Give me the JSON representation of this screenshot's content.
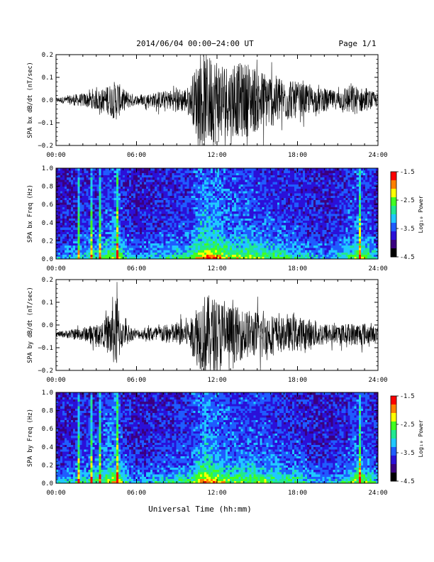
{
  "header": {
    "title": "2014/06/04  00:00−24:00 UT",
    "page": "Page 1/1"
  },
  "xlabel": "Universal Time (hh:mm)",
  "x_ticks": [
    "00:00",
    "06:00",
    "12:00",
    "18:00",
    "24:00"
  ],
  "x_range_hours": [
    0,
    24
  ],
  "colorbar": {
    "label": "Log₁₀ Power",
    "ticks": [
      "-1.5",
      "-2.5",
      "-3.5",
      "-4.5"
    ],
    "range": [
      -4.5,
      -1.5
    ],
    "colors": [
      "#000000",
      "#3a0080",
      "#2b10d8",
      "#1f5cff",
      "#20c8ff",
      "#20e890",
      "#40ff20",
      "#ffff00",
      "#ff8000",
      "#ff0000"
    ]
  },
  "chart_data": [
    {
      "type": "line",
      "ylabel": "SPA bx dB/dt (nT/sec)",
      "yticks": [
        "0.2",
        "0.1",
        "0.0",
        "−0.1",
        "−0.2"
      ],
      "ylim": [
        -0.2,
        0.2
      ],
      "x_range_hours": [
        0,
        24
      ],
      "envelope": {
        "hours": [
          0,
          2,
          3.5,
          4.5,
          5,
          6,
          8,
          10,
          10.5,
          11,
          12,
          13,
          14,
          15,
          16,
          17,
          18,
          19,
          20,
          21,
          22,
          23,
          24
        ],
        "amplitude": [
          0.01,
          0.03,
          0.05,
          0.09,
          0.05,
          0.02,
          0.04,
          0.06,
          0.17,
          0.2,
          0.2,
          0.15,
          0.17,
          0.14,
          0.12,
          0.09,
          0.08,
          0.06,
          0.05,
          0.04,
          0.07,
          0.05,
          0.03
        ],
        "offset": 0.0
      }
    },
    {
      "type": "heatmap",
      "ylabel": "SPA bx Freq (Hz)",
      "yticks": [
        "1.0",
        "0.8",
        "0.6",
        "0.4",
        "0.2",
        "0.0"
      ],
      "ylim": [
        0.0,
        1.0
      ],
      "x_range_hours": [
        0,
        24
      ],
      "activity_hours": [
        0,
        2,
        3.5,
        4.5,
        5,
        6,
        8,
        10,
        11,
        12,
        13,
        14,
        15,
        16,
        17,
        18,
        19,
        20,
        21,
        22.5,
        23.5,
        24
      ],
      "activity_level": [
        0.35,
        0.5,
        0.6,
        0.85,
        0.55,
        0.4,
        0.5,
        0.6,
        1.0,
        0.9,
        0.75,
        0.75,
        0.7,
        0.65,
        0.6,
        0.55,
        0.45,
        0.4,
        0.45,
        0.75,
        0.6,
        0.4
      ],
      "vertical_streaks_hours": [
        1.7,
        2.6,
        3.3,
        4.55,
        22.6
      ]
    },
    {
      "type": "line",
      "ylabel": "SPA by dB/dt (nT/sec)",
      "yticks": [
        "0.2",
        "0.1",
        "0.0",
        "−0.1",
        "−0.2"
      ],
      "ylim": [
        -0.2,
        0.2
      ],
      "x_range_hours": [
        0,
        24
      ],
      "envelope": {
        "hours": [
          0,
          2,
          3.5,
          4.5,
          5,
          6,
          8,
          10,
          10.5,
          11,
          12,
          13,
          14,
          15,
          16,
          17,
          18,
          19,
          20,
          21,
          22,
          23,
          24
        ],
        "amplitude": [
          0.01,
          0.03,
          0.05,
          0.16,
          0.05,
          0.02,
          0.04,
          0.06,
          0.14,
          0.18,
          0.16,
          0.13,
          0.11,
          0.1,
          0.09,
          0.07,
          0.08,
          0.06,
          0.05,
          0.04,
          0.05,
          0.05,
          0.03
        ],
        "offset": -0.04
      }
    },
    {
      "type": "heatmap",
      "ylabel": "SPA by Freq (Hz)",
      "yticks": [
        "1.0",
        "0.8",
        "0.6",
        "0.4",
        "0.2",
        "0.0"
      ],
      "ylim": [
        0.0,
        1.0
      ],
      "x_range_hours": [
        0,
        24
      ],
      "activity_hours": [
        0,
        2,
        3.5,
        4.5,
        5,
        6,
        8,
        10,
        11,
        12,
        13,
        14,
        15,
        16,
        17,
        18,
        19,
        20,
        21,
        22.5,
        23.5,
        24
      ],
      "activity_level": [
        0.4,
        0.55,
        0.65,
        0.9,
        0.55,
        0.4,
        0.5,
        0.6,
        1.0,
        0.85,
        0.7,
        0.7,
        0.7,
        0.65,
        0.6,
        0.6,
        0.45,
        0.4,
        0.45,
        0.75,
        0.6,
        0.4
      ],
      "vertical_streaks_hours": [
        1.7,
        2.6,
        3.3,
        4.6,
        22.6
      ]
    }
  ]
}
